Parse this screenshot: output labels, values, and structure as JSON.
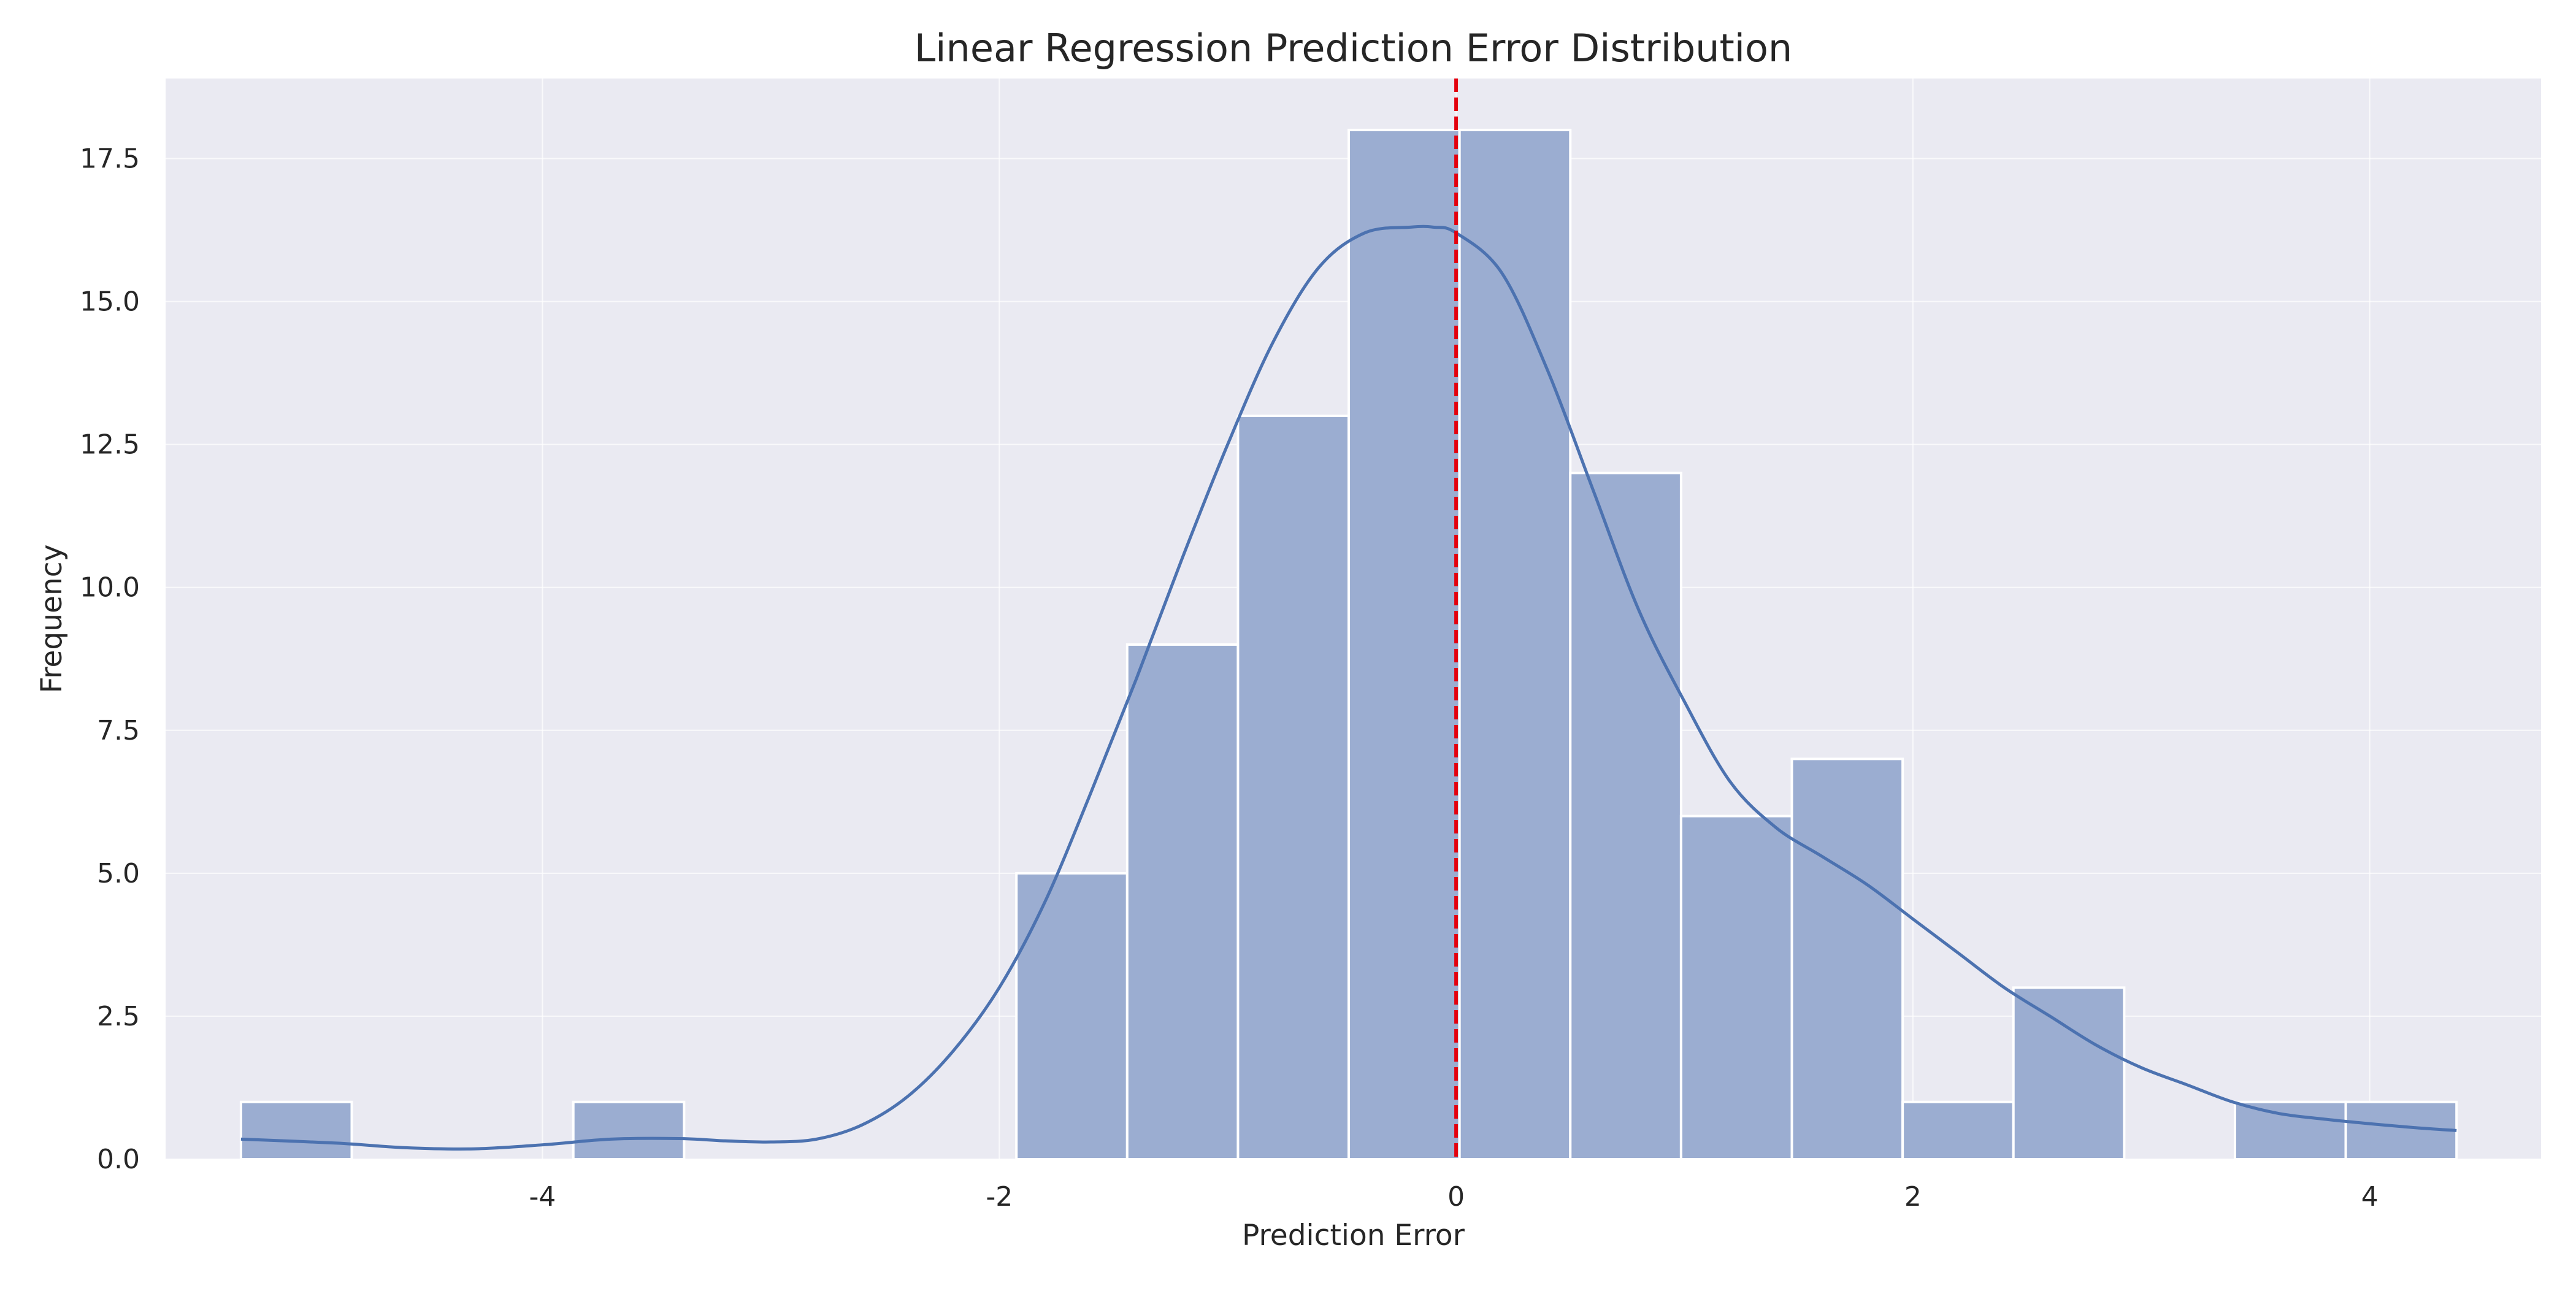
{
  "chart_data": {
    "type": "bar",
    "title": "Linear Regression Prediction Error Distribution",
    "xlabel": "Prediction Error",
    "ylabel": "Frequency",
    "xlim": [
      -5.65,
      4.75
    ],
    "ylim": [
      0,
      18.9
    ],
    "xticks": [
      -4,
      -2,
      0,
      2,
      4
    ],
    "xtick_labels": [
      "-4",
      "-2",
      "0",
      "2",
      "4"
    ],
    "yticks": [
      0.0,
      2.5,
      5.0,
      7.5,
      10.0,
      12.5,
      15.0,
      17.5
    ],
    "ytick_labels": [
      "0.0",
      "2.5",
      "5.0",
      "7.5",
      "10.0",
      "12.5",
      "15.0",
      "17.5"
    ],
    "bin_edges": [
      -5.32,
      -4.835,
      -4.35,
      -3.865,
      -3.38,
      -2.895,
      -2.41,
      -1.925,
      -1.44,
      -0.955,
      -0.47,
      0.015,
      0.5,
      0.985,
      1.47,
      1.955,
      2.44,
      2.925,
      3.41,
      3.895,
      4.38
    ],
    "values": [
      1,
      0,
      0,
      1,
      0,
      0,
      0,
      5,
      9,
      13,
      18,
      18,
      12,
      6,
      7,
      1,
      3,
      0,
      1,
      1
    ],
    "kde": {
      "name": "KDE",
      "x": [
        -5.32,
        -4.9,
        -4.6,
        -4.3,
        -4.0,
        -3.7,
        -3.4,
        -3.2,
        -3.0,
        -2.8,
        -2.6,
        -2.4,
        -2.2,
        -2.0,
        -1.8,
        -1.6,
        -1.4,
        -1.2,
        -1.0,
        -0.8,
        -0.6,
        -0.4,
        -0.2,
        -0.1,
        0.0,
        0.2,
        0.4,
        0.6,
        0.8,
        1.0,
        1.2,
        1.4,
        1.6,
        1.8,
        2.0,
        2.2,
        2.4,
        2.6,
        2.8,
        3.0,
        3.2,
        3.4,
        3.6,
        3.8,
        4.0,
        4.2,
        4.38
      ],
      "y": [
        0.35,
        0.28,
        0.2,
        0.18,
        0.25,
        0.35,
        0.36,
        0.32,
        0.3,
        0.35,
        0.6,
        1.1,
        1.9,
        3.0,
        4.5,
        6.4,
        8.4,
        10.5,
        12.5,
        14.3,
        15.6,
        16.2,
        16.3,
        16.3,
        16.2,
        15.5,
        13.8,
        11.7,
        9.6,
        8.0,
        6.6,
        5.8,
        5.3,
        4.8,
        4.2,
        3.6,
        3.0,
        2.5,
        2.0,
        1.6,
        1.3,
        1.0,
        0.8,
        0.7,
        0.62,
        0.55,
        0.5
      ]
    },
    "reference_line": {
      "x": 0.0,
      "style": "dashed"
    },
    "grid": true,
    "colors": {
      "plot_background": "#EAEAF2",
      "grid": "#FFFFFF",
      "bar_fill": "#9BADD1",
      "bar_edge": "#FFFFFF",
      "kde_line": "#4C72B0",
      "reference_line": "#E3000F"
    }
  }
}
